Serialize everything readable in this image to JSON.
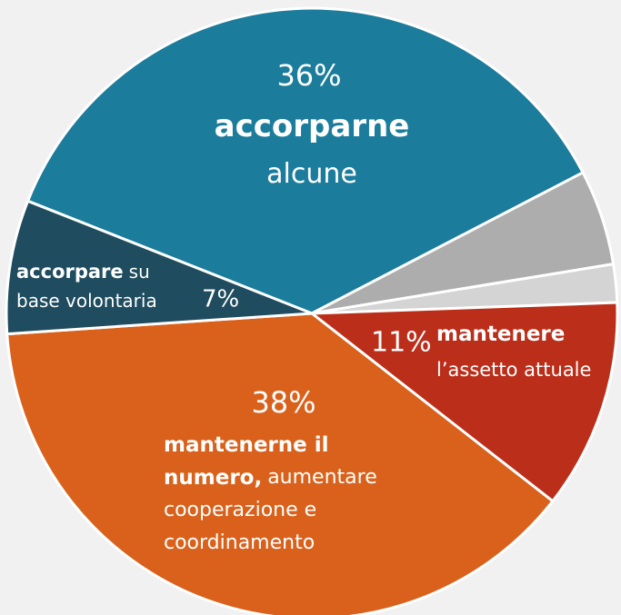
{
  "chart_data": {
    "type": "pie",
    "categories": [
      "accorparne alcune",
      null,
      null,
      "mantenere l’assetto attuale",
      "mantenerne il numero, aumentare cooperazione e coordinamento",
      "accorpare su base volontaria"
    ],
    "values": [
      36,
      5,
      2,
      11,
      38,
      7
    ],
    "value_labels": [
      "36%",
      null,
      null,
      "11%",
      "38%",
      "7%"
    ],
    "colors": [
      "#1b7c9c",
      "#adadad",
      "#d4d4d4",
      "#bb2e1a",
      "#d9611b",
      "#1f4c5e"
    ],
    "labels": [
      [
        [
          {
            "text": "accorparne",
            "bold": true
          }
        ],
        [
          {
            "text": "alcune"
          }
        ]
      ],
      null,
      null,
      [
        [
          {
            "text": "mantenere",
            "bold": true
          }
        ],
        [
          {
            "text": "l’assetto attuale"
          }
        ]
      ],
      [
        [
          {
            "text": "mantenerne il",
            "bold": true
          }
        ],
        [
          {
            "text": "numero,",
            "bold": true
          },
          {
            "text": "aumentare"
          }
        ],
        [
          {
            "text": "cooperazione e"
          }
        ],
        [
          {
            "text": "coordinamento"
          }
        ]
      ],
      [
        [
          {
            "text": "accorpare",
            "bold": true
          },
          {
            "text": "su"
          }
        ],
        [
          {
            "text": "base volontaria"
          }
        ]
      ]
    ]
  }
}
